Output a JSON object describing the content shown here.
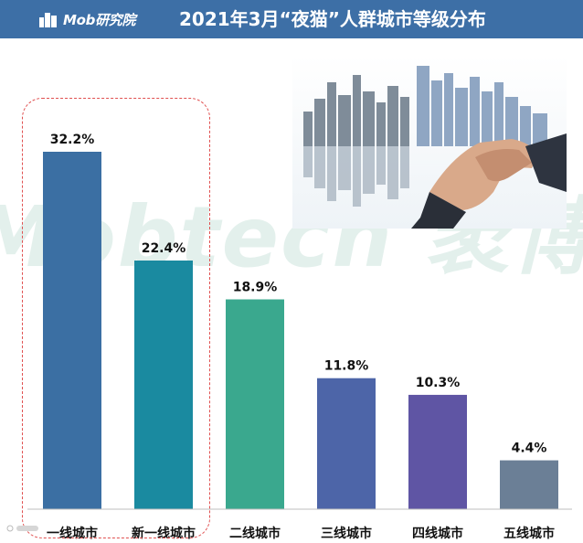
{
  "header": {
    "logo_text": "Mob研究院",
    "title": "2021年3月“夜猫”人群城市等级分布"
  },
  "watermark": {
    "text": "Mobtech 袤博"
  },
  "chart_data": {
    "type": "bar",
    "title": "2021年3月“夜猫”人群城市等级分布",
    "categories": [
      "一线城市",
      "新一线城市",
      "二线城市",
      "三线城市",
      "四线城市",
      "五线城市"
    ],
    "values": [
      32.2,
      22.4,
      18.9,
      11.8,
      10.3,
      4.4
    ],
    "value_labels": [
      "32.2%",
      "22.4%",
      "18.9%",
      "11.8%",
      "10.3%",
      "4.4%"
    ],
    "colors": [
      "#3b6fa3",
      "#1a8aa0",
      "#3aa88e",
      "#4d65a8",
      "#5f55a4",
      "#6b7f96"
    ],
    "unit": "%",
    "ylim": [
      0,
      32.2
    ],
    "grid": false,
    "legend": "none",
    "highlighted_categories": [
      "一线城市",
      "新一线城市"
    ]
  }
}
